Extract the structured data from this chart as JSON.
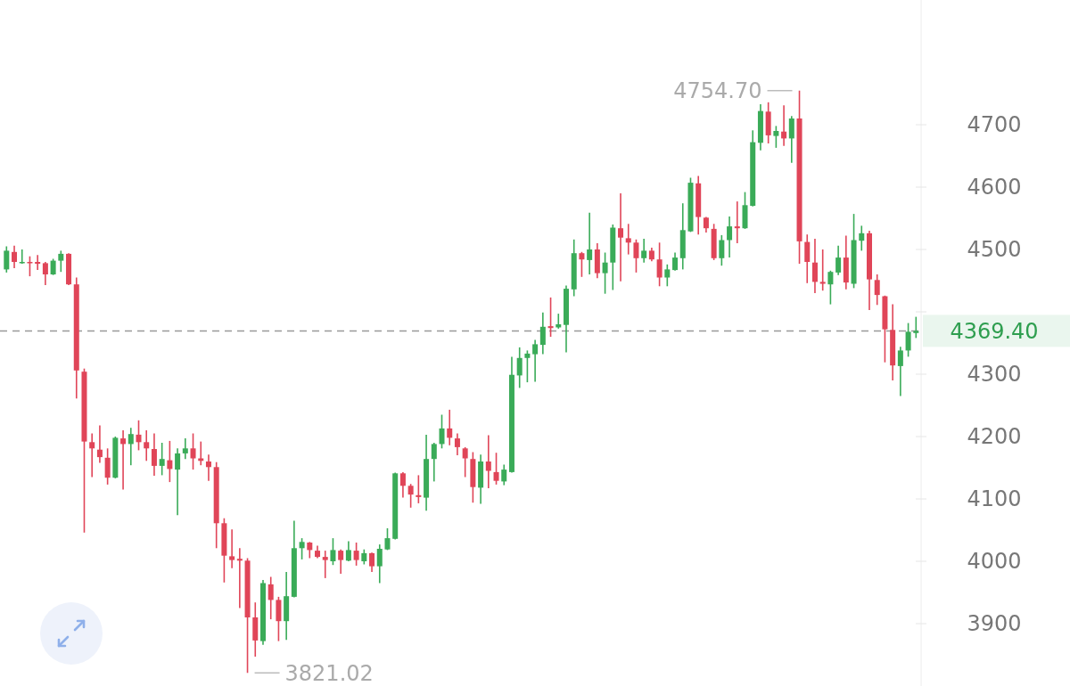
{
  "chart_data": {
    "type": "candlestick",
    "categories": [
      null,
      null,
      null,
      null,
      null,
      null,
      null,
      null,
      null,
      null,
      null,
      null,
      null,
      null,
      null,
      null,
      null,
      null,
      null,
      null,
      null,
      null,
      null,
      null,
      null,
      null,
      null,
      null,
      null,
      null,
      null,
      null,
      null,
      null,
      null,
      null,
      null,
      null,
      null,
      null,
      null,
      null,
      null,
      null,
      null,
      null,
      null,
      null,
      null,
      null,
      null,
      null,
      null,
      null,
      null,
      null,
      null,
      null,
      null,
      null,
      null,
      null,
      null,
      null,
      null,
      null,
      null,
      null,
      null,
      null,
      null,
      null,
      null,
      null,
      null,
      null,
      null,
      null,
      null,
      null,
      null,
      null,
      null,
      null,
      null,
      null,
      null,
      null,
      null,
      null,
      null,
      null,
      null,
      null,
      null,
      null,
      null,
      null,
      null,
      null,
      null,
      null,
      null,
      null,
      null,
      null,
      null,
      null,
      null,
      null,
      null,
      null,
      null,
      null,
      null,
      null,
      null,
      null
    ],
    "ohlc": [
      [
        4468,
        4505,
        4463,
        4498
      ],
      [
        4496,
        4506,
        4470,
        4480
      ],
      [
        4478,
        4500,
        4477,
        4480
      ],
      [
        4480,
        4489,
        4457,
        4478
      ],
      [
        4480,
        4491,
        4467,
        4477
      ],
      [
        4478,
        4480,
        4443,
        4460
      ],
      [
        4460,
        4485,
        4459,
        4482
      ],
      [
        4482,
        4498,
        4464,
        4493
      ],
      [
        4493,
        4494,
        4443,
        4444
      ],
      [
        4444,
        4455,
        4261,
        4306
      ],
      [
        4304,
        4309,
        4046,
        4192
      ],
      [
        4191,
        4205,
        4135,
        4181
      ],
      [
        4179,
        4218,
        4158,
        4167
      ],
      [
        4166,
        4181,
        4123,
        4134
      ],
      [
        4134,
        4200,
        4133,
        4198
      ],
      [
        4197,
        4210,
        4115,
        4188
      ],
      [
        4188,
        4214,
        4154,
        4204
      ],
      [
        4203,
        4226,
        4178,
        4191
      ],
      [
        4191,
        4210,
        4161,
        4181
      ],
      [
        4180,
        4205,
        4137,
        4153
      ],
      [
        4153,
        4190,
        4138,
        4164
      ],
      [
        4162,
        4193,
        4127,
        4148
      ],
      [
        4147,
        4181,
        4074,
        4173
      ],
      [
        4173,
        4197,
        4164,
        4181
      ],
      [
        4181,
        4205,
        4147,
        4165
      ],
      [
        4165,
        4192,
        4154,
        4161
      ],
      [
        4160,
        4171,
        4129,
        4151
      ],
      [
        4151,
        4159,
        4021,
        4061
      ],
      [
        4061,
        4069,
        3966,
        4009
      ],
      [
        4008,
        4051,
        3989,
        4002
      ],
      [
        4004,
        4021,
        3925,
        4001
      ],
      [
        4001,
        4005,
        3821.02,
        3910
      ],
      [
        3910,
        3934,
        3847,
        3873
      ],
      [
        3872,
        3970,
        3866,
        3965
      ],
      [
        3963,
        3975,
        3907,
        3938
      ],
      [
        3938,
        3943,
        3872,
        3904
      ],
      [
        3904,
        3983,
        3874,
        3944
      ],
      [
        3943,
        4065,
        3942,
        4021
      ],
      [
        4021,
        4037,
        4003,
        4031
      ],
      [
        4030,
        4031,
        4005,
        4018
      ],
      [
        4017,
        4025,
        4005,
        4007
      ],
      [
        4007,
        4017,
        3973,
        4002
      ],
      [
        4000,
        4037,
        3994,
        4018
      ],
      [
        4017,
        4019,
        3980,
        4002
      ],
      [
        4001,
        4032,
        4000,
        4018
      ],
      [
        4017,
        4030,
        3993,
        4002
      ],
      [
        4000,
        4019,
        3995,
        4013
      ],
      [
        4013,
        4014,
        3983,
        3992
      ],
      [
        3992,
        4027,
        3965,
        4020
      ],
      [
        4019,
        4053,
        4018,
        4037
      ],
      [
        4036,
        4142,
        4035,
        4141
      ],
      [
        4141,
        4143,
        4102,
        4121
      ],
      [
        4121,
        4124,
        4086,
        4107
      ],
      [
        4106,
        4138,
        4093,
        4103
      ],
      [
        4102,
        4203,
        4081,
        4164
      ],
      [
        4164,
        4190,
        4128,
        4188
      ],
      [
        4188,
        4235,
        4181,
        4213
      ],
      [
        4213,
        4243,
        4186,
        4198
      ],
      [
        4197,
        4205,
        4170,
        4183
      ],
      [
        4181,
        4183,
        4135,
        4165
      ],
      [
        4164,
        4175,
        4094,
        4119
      ],
      [
        4118,
        4171,
        4092,
        4160
      ],
      [
        4160,
        4202,
        4117,
        4145
      ],
      [
        4143,
        4174,
        4123,
        4129
      ],
      [
        4128,
        4155,
        4122,
        4147
      ],
      [
        4143,
        4328,
        4142,
        4299
      ],
      [
        4298,
        4343,
        4278,
        4326
      ],
      [
        4326,
        4338,
        4287,
        4333
      ],
      [
        4332,
        4355,
        4288,
        4348
      ],
      [
        4347,
        4399,
        4332,
        4376
      ],
      [
        4377,
        4423,
        4360,
        4374
      ],
      [
        4375,
        4397,
        4373,
        4380
      ],
      [
        4379,
        4442,
        4335,
        4437
      ],
      [
        4436,
        4516,
        4425,
        4494
      ],
      [
        4494,
        4496,
        4456,
        4484
      ],
      [
        4483,
        4559,
        4460,
        4500
      ],
      [
        4500,
        4510,
        4454,
        4462
      ],
      [
        4462,
        4495,
        4429,
        4479
      ],
      [
        4479,
        4540,
        4435,
        4535
      ],
      [
        4534,
        4590,
        4449,
        4519
      ],
      [
        4518,
        4541,
        4492,
        4511
      ],
      [
        4511,
        4516,
        4463,
        4486
      ],
      [
        4486,
        4517,
        4479,
        4498
      ],
      [
        4498,
        4503,
        4481,
        4484
      ],
      [
        4484,
        4511,
        4441,
        4455
      ],
      [
        4455,
        4476,
        4441,
        4468
      ],
      [
        4467,
        4495,
        4466,
        4487
      ],
      [
        4486,
        4574,
        4468,
        4531
      ],
      [
        4529,
        4615,
        4528,
        4607
      ],
      [
        4606,
        4618,
        4524,
        4552
      ],
      [
        4551,
        4552,
        4527,
        4534
      ],
      [
        4533,
        4541,
        4483,
        4486
      ],
      [
        4486,
        4523,
        4474,
        4515
      ],
      [
        4515,
        4553,
        4487,
        4537
      ],
      [
        4537,
        4577,
        4510,
        4534
      ],
      [
        4534,
        4592,
        4533,
        4571
      ],
      [
        4570,
        4691,
        4569,
        4672
      ],
      [
        4671,
        4733,
        4659,
        4722
      ],
      [
        4721,
        4736,
        4670,
        4683
      ],
      [
        4682,
        4698,
        4663,
        4690
      ],
      [
        4689,
        4731,
        4666,
        4678
      ],
      [
        4678,
        4714,
        4639,
        4710
      ],
      [
        4710,
        4754.7,
        4477,
        4513
      ],
      [
        4512,
        4524,
        4446,
        4480
      ],
      [
        4479,
        4517,
        4430,
        4448
      ],
      [
        4448,
        4500,
        4434,
        4445
      ],
      [
        4444,
        4466,
        4412,
        4464
      ],
      [
        4463,
        4506,
        4459,
        4487
      ],
      [
        4487,
        4522,
        4436,
        4447
      ],
      [
        4445,
        4557,
        4438,
        4515
      ],
      [
        4514,
        4538,
        4498,
        4526
      ],
      [
        4526,
        4530,
        4403,
        4452
      ],
      [
        4451,
        4460,
        4411,
        4427
      ],
      [
        4425,
        4426,
        4319,
        4372
      ],
      [
        4371,
        4412,
        4290,
        4314
      ],
      [
        4313,
        4344,
        4265,
        4338
      ],
      [
        4338,
        4382,
        4328,
        4368
      ],
      [
        4366,
        4392,
        4358,
        4369.4
      ]
    ],
    "colors": [
      "#3aab58",
      "#e04558",
      "#3aab58",
      "#e04558",
      "#e04558",
      "#e04558",
      "#3aab58",
      "#3aab58",
      "#e04558",
      "#e04558",
      "#e04558",
      "#e04558",
      "#e04558",
      "#e04558",
      "#3aab58",
      "#e04558",
      "#3aab58",
      "#e04558",
      "#e04558",
      "#e04558",
      "#3aab58",
      "#e04558",
      "#3aab58",
      "#3aab58",
      "#e04558",
      "#e04558",
      "#e04558",
      "#e04558",
      "#e04558",
      "#e04558",
      "#e04558",
      "#e04558",
      "#e04558",
      "#3aab58",
      "#e04558",
      "#e04558",
      "#3aab58",
      "#3aab58",
      "#3aab58",
      "#e04558",
      "#e04558",
      "#e04558",
      "#3aab58",
      "#e04558",
      "#3aab58",
      "#e04558",
      "#3aab58",
      "#e04558",
      "#3aab58",
      "#3aab58",
      "#3aab58",
      "#e04558",
      "#e04558",
      "#e04558",
      "#3aab58",
      "#3aab58",
      "#3aab58",
      "#e04558",
      "#e04558",
      "#e04558",
      "#e04558",
      "#3aab58",
      "#e04558",
      "#e04558",
      "#3aab58",
      "#3aab58",
      "#3aab58",
      "#3aab58",
      "#3aab58",
      "#3aab58",
      "#e04558",
      "#3aab58",
      "#3aab58",
      "#3aab58",
      "#e04558",
      "#3aab58",
      "#e04558",
      "#3aab58",
      "#3aab58",
      "#e04558",
      "#e04558",
      "#e04558",
      "#3aab58",
      "#e04558",
      "#e04558",
      "#3aab58",
      "#3aab58",
      "#3aab58",
      "#3aab58",
      "#e04558",
      "#e04558",
      "#e04558",
      "#3aab58",
      "#3aab58",
      "#e04558",
      "#3aab58",
      "#3aab58",
      "#3aab58",
      "#e04558",
      "#3aab58",
      "#e04558",
      "#3aab58",
      "#e04558",
      "#e04558",
      "#e04558",
      "#e04558",
      "#3aab58",
      "#3aab58",
      "#e04558",
      "#3aab58",
      "#3aab58",
      "#e04558",
      "#e04558",
      "#e04558",
      "#e04558",
      "#3aab58",
      "#3aab58",
      "#3aab58"
    ],
    "ylim": [
      3800,
      4900
    ],
    "yticks": [
      3900,
      4000,
      4100,
      4200,
      4300,
      {
        "value": 4400,
        "label": null
      },
      4500,
      4600,
      4700
    ],
    "tick_labels": "y",
    "ref_lines": [
      {
        "axis": "y",
        "value": 4369.4,
        "label": "4369.40",
        "color": "#999999",
        "line_style": "dashed"
      }
    ],
    "annotations": [
      "4754.70",
      "3821.02"
    ]
  }
}
